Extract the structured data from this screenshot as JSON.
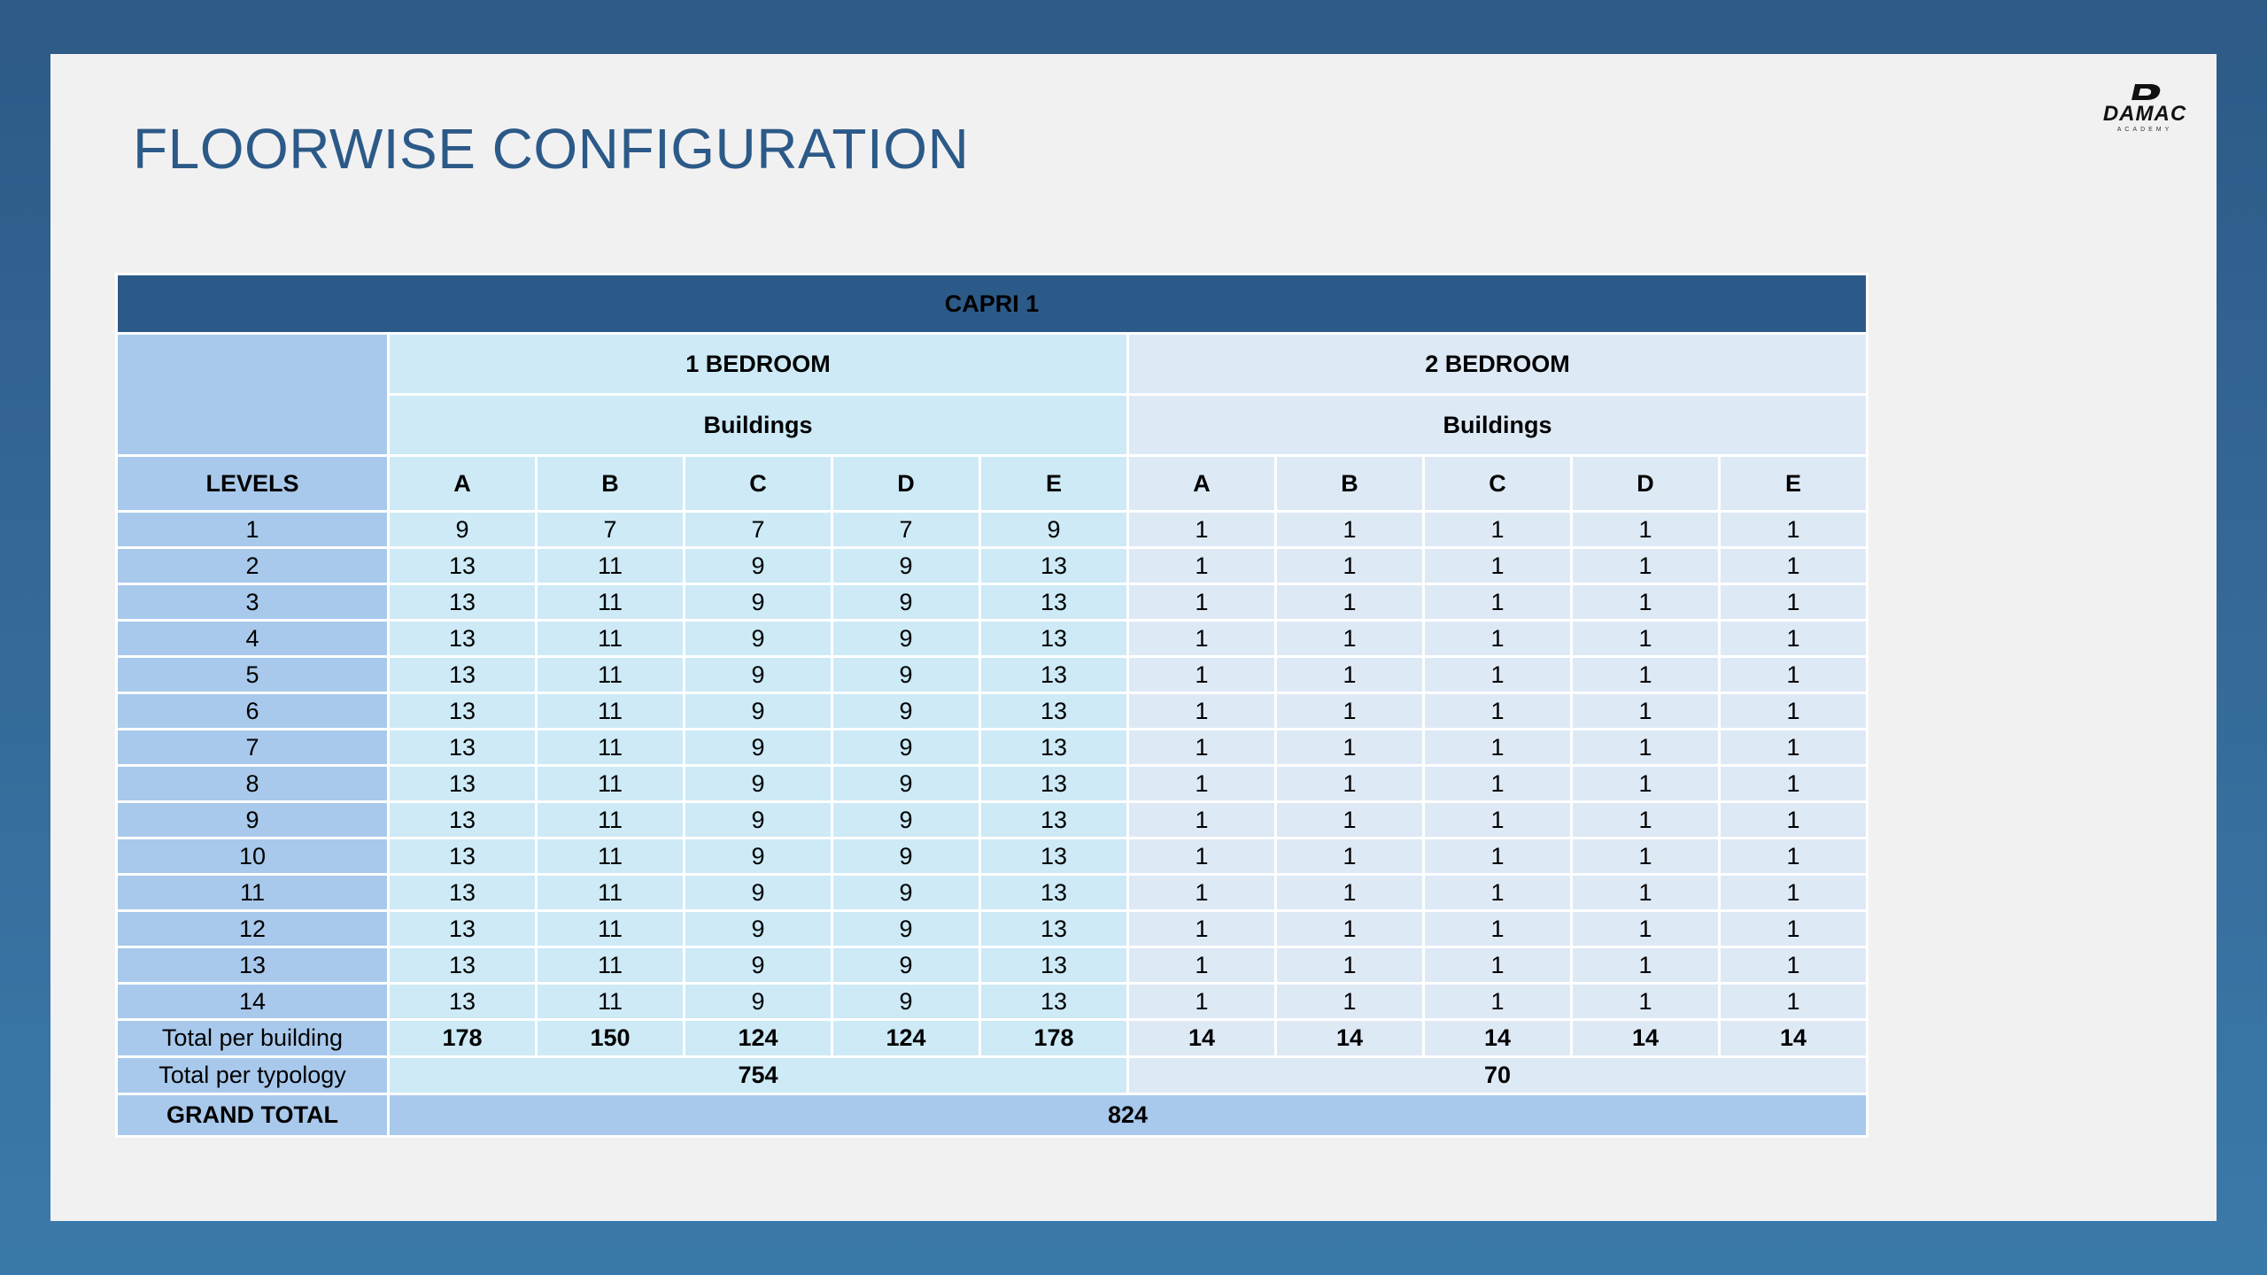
{
  "title": "FLOORWISE CONFIGURATION",
  "logo": {
    "word": "DAMAC",
    "sub": "ACADEMY"
  },
  "table": {
    "caption": "CAPRI 1",
    "groups": [
      {
        "label": "1 BEDROOM",
        "sub": "Buildings"
      },
      {
        "label": "2 BEDROOM",
        "sub": "Buildings"
      }
    ],
    "levels_label": "LEVELS",
    "buildings": [
      "A",
      "B",
      "C",
      "D",
      "E",
      "A",
      "B",
      "C",
      "D",
      "E"
    ],
    "rows": [
      {
        "level": "1",
        "values": [
          "9",
          "7",
          "7",
          "7",
          "9",
          "1",
          "1",
          "1",
          "1",
          "1"
        ]
      },
      {
        "level": "2",
        "values": [
          "13",
          "11",
          "9",
          "9",
          "13",
          "1",
          "1",
          "1",
          "1",
          "1"
        ]
      },
      {
        "level": "3",
        "values": [
          "13",
          "11",
          "9",
          "9",
          "13",
          "1",
          "1",
          "1",
          "1",
          "1"
        ]
      },
      {
        "level": "4",
        "values": [
          "13",
          "11",
          "9",
          "9",
          "13",
          "1",
          "1",
          "1",
          "1",
          "1"
        ]
      },
      {
        "level": "5",
        "values": [
          "13",
          "11",
          "9",
          "9",
          "13",
          "1",
          "1",
          "1",
          "1",
          "1"
        ]
      },
      {
        "level": "6",
        "values": [
          "13",
          "11",
          "9",
          "9",
          "13",
          "1",
          "1",
          "1",
          "1",
          "1"
        ]
      },
      {
        "level": "7",
        "values": [
          "13",
          "11",
          "9",
          "9",
          "13",
          "1",
          "1",
          "1",
          "1",
          "1"
        ]
      },
      {
        "level": "8",
        "values": [
          "13",
          "11",
          "9",
          "9",
          "13",
          "1",
          "1",
          "1",
          "1",
          "1"
        ]
      },
      {
        "level": "9",
        "values": [
          "13",
          "11",
          "9",
          "9",
          "13",
          "1",
          "1",
          "1",
          "1",
          "1"
        ]
      },
      {
        "level": "10",
        "values": [
          "13",
          "11",
          "9",
          "9",
          "13",
          "1",
          "1",
          "1",
          "1",
          "1"
        ]
      },
      {
        "level": "11",
        "values": [
          "13",
          "11",
          "9",
          "9",
          "13",
          "1",
          "1",
          "1",
          "1",
          "1"
        ]
      },
      {
        "level": "12",
        "values": [
          "13",
          "11",
          "9",
          "9",
          "13",
          "1",
          "1",
          "1",
          "1",
          "1"
        ]
      },
      {
        "level": "13",
        "values": [
          "13",
          "11",
          "9",
          "9",
          "13",
          "1",
          "1",
          "1",
          "1",
          "1"
        ]
      },
      {
        "level": "14",
        "values": [
          "13",
          "11",
          "9",
          "9",
          "13",
          "1",
          "1",
          "1",
          "1",
          "1"
        ]
      }
    ],
    "total_per_building": {
      "label": "Total per building",
      "values": [
        "178",
        "150",
        "124",
        "124",
        "178",
        "14",
        "14",
        "14",
        "14",
        "14"
      ]
    },
    "total_per_typology": {
      "label": "Total per typology",
      "values": [
        "754",
        "70"
      ]
    },
    "grand_total": {
      "label": "GRAND TOTAL",
      "value": "824"
    }
  },
  "colors": {
    "title": "#2c5a88",
    "caption_bg": "#2c5a88",
    "levels_bg": "#a8c9ec",
    "one_bedroom_bg": "#cdeaf6",
    "two_bedroom_bg": "#dee9f6",
    "slide_bg": "#f2f1f2"
  }
}
